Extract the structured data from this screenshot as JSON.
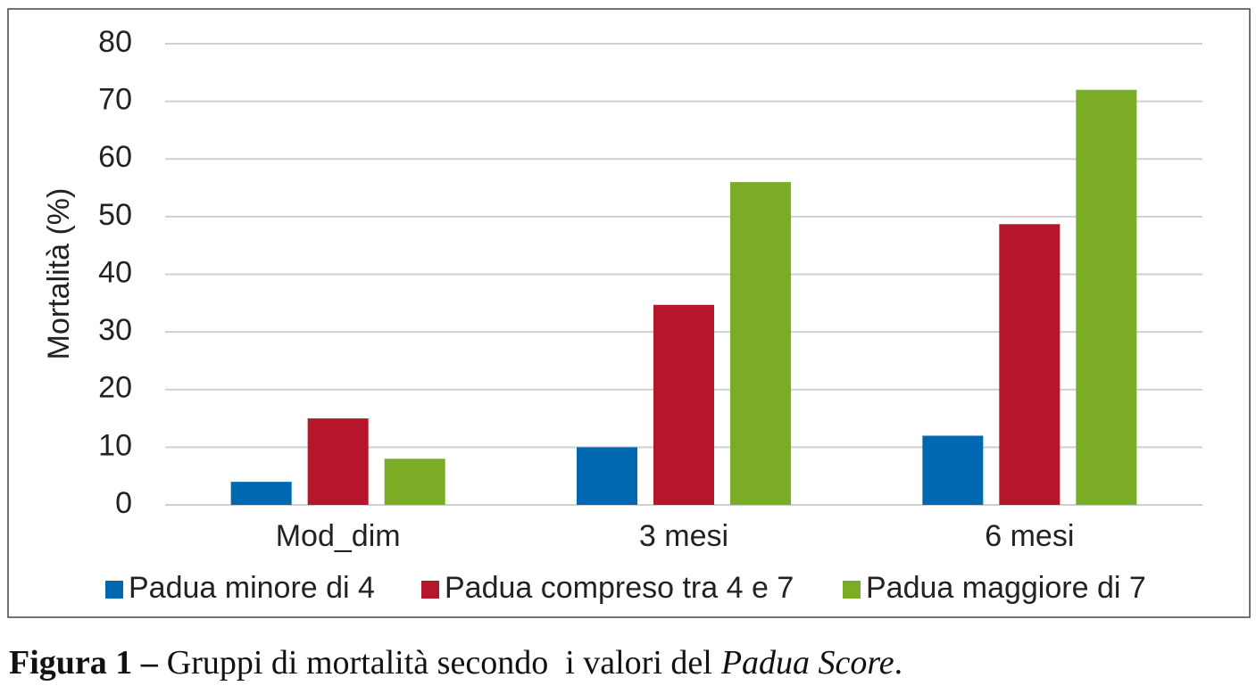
{
  "chart_data": {
    "type": "bar",
    "y_label": "Mortalità (%)",
    "categories": [
      "Mod_dim",
      "3 mesi",
      "6 mesi"
    ],
    "series": [
      {
        "name": "Padua minore di 4",
        "color": "#0068b0",
        "values": [
          4,
          10,
          12
        ]
      },
      {
        "name": "Padua compreso tra 4 e 7",
        "color": "#b5162b",
        "values": [
          15,
          34.7,
          48.7
        ]
      },
      {
        "name": "Padua maggiore di 7",
        "color": "#7aac25",
        "values": [
          8,
          56,
          72
        ]
      }
    ],
    "ylim": [
      0,
      80
    ],
    "yticks": [
      0,
      10,
      20,
      30,
      40,
      50,
      60,
      70,
      80
    ],
    "grid": true,
    "legend": "bottom"
  },
  "caption": {
    "label": "Figura 1 –",
    "text": "Gruppi di mortalità secondo  i valori del",
    "italic": "Padua Score",
    "end": "."
  }
}
